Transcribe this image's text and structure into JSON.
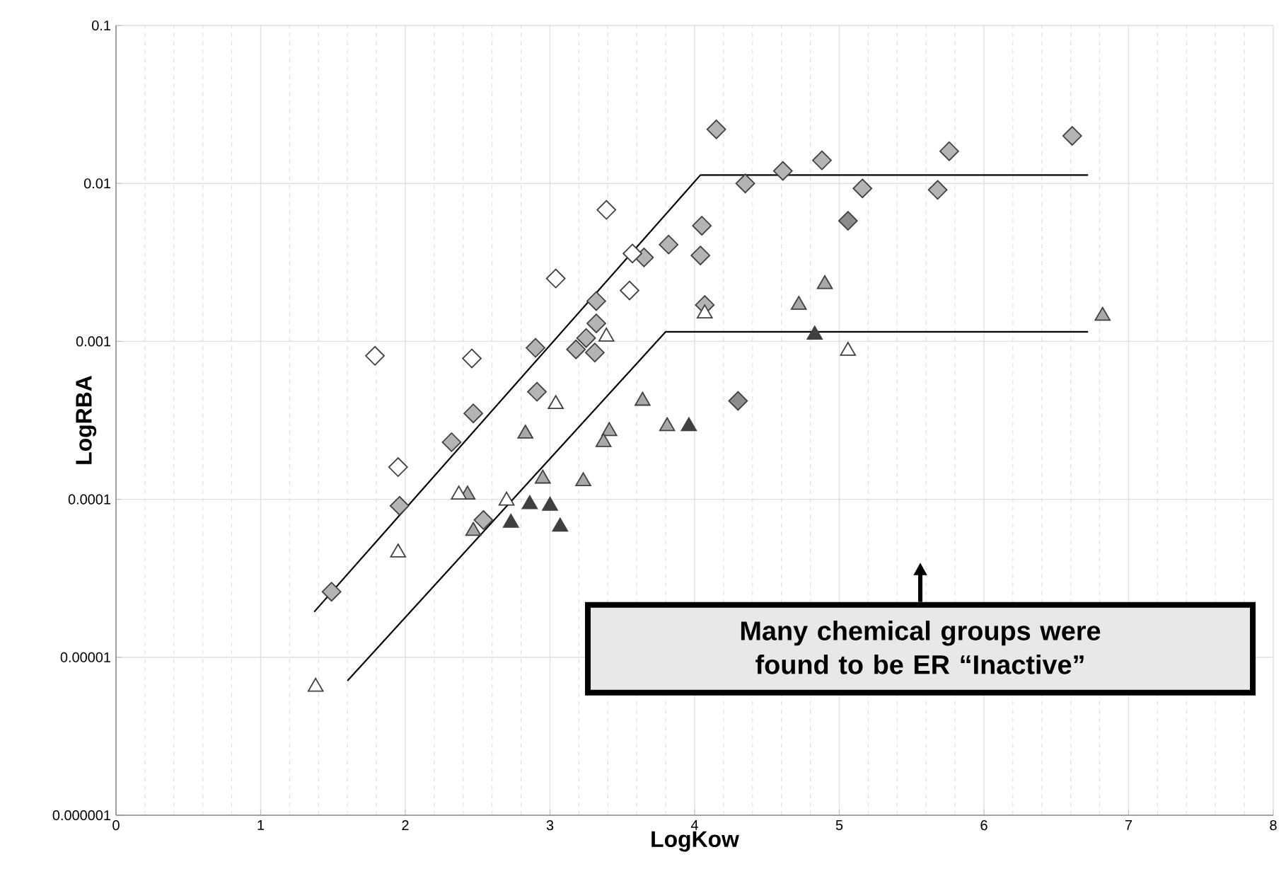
{
  "chart_data": {
    "type": "scatter",
    "xlabel": "LogKow",
    "ylabel": "LogRBA",
    "log": "y",
    "grid": true,
    "xlim": [
      0,
      8
    ],
    "xticks": [
      0,
      1,
      2,
      3,
      4,
      5,
      6,
      7,
      8
    ],
    "ylim": [
      1e-06,
      0.1
    ],
    "yticks": [
      {
        "value": 1e-06,
        "label": "0.000001"
      },
      {
        "value": 1e-05,
        "label": "0.00001"
      },
      {
        "value": 0.0001,
        "label": "0.0001"
      },
      {
        "value": 0.001,
        "label": "0.001"
      },
      {
        "value": 0.01,
        "label": "0.01"
      },
      {
        "value": 0.1,
        "label": "0.1"
      }
    ],
    "annotations": [
      "Many chemical groups were found to be ER “Inactive”"
    ],
    "series": [
      {
        "color": "#b4b4b4",
        "marker": "diamond",
        "x": [
          1.49,
          1.96,
          2.32,
          2.47,
          2.54,
          2.9,
          2.91,
          3.18,
          3.31,
          3.25,
          3.32,
          3.32,
          3.65,
          3.82,
          4.04,
          4.05,
          4.07,
          4.15,
          4.35,
          4.61,
          4.88,
          5.16,
          5.68,
          5.76,
          6.61
        ],
        "values": [
          2.6e-05,
          9.1e-05,
          0.00023,
          0.00035,
          7.4e-05,
          0.00091,
          0.00048,
          0.00089,
          0.00085,
          0.00105,
          0.0013,
          0.0018,
          0.0034,
          0.0041,
          0.0035,
          0.0054,
          0.0017,
          0.022,
          0.01,
          0.012,
          0.014,
          0.0093,
          0.0091,
          0.016,
          0.02
        ]
      },
      {
        "color": "#8c8c8c",
        "marker": "diamond",
        "x": [
          5.06,
          4.3
        ],
        "values": [
          0.0058,
          0.00042
        ]
      },
      {
        "color": "#ffffff",
        "marker": "diamond",
        "x": [
          1.79,
          1.95,
          2.46,
          3.04,
          3.39,
          3.57,
          3.55
        ],
        "values": [
          0.00081,
          0.00016,
          0.00078,
          0.0025,
          0.0068,
          0.0036,
          0.0021
        ]
      },
      {
        "color": "#a8a8a8",
        "marker": "triangle",
        "x": [
          2.43,
          2.47,
          2.95,
          3.23,
          2.83,
          3.41,
          3.37,
          3.64,
          3.81,
          4.72,
          4.9,
          6.82
        ],
        "values": [
          0.000107,
          6.3e-05,
          0.000135,
          0.00013,
          0.00026,
          0.00027,
          0.00023,
          0.00042,
          0.00029,
          0.0017,
          0.0023,
          0.00145
        ]
      },
      {
        "color": "#ffffff",
        "marker": "triangle",
        "x": [
          1.38,
          1.95,
          2.37,
          2.7,
          3.04,
          3.39,
          4.07,
          5.06
        ],
        "values": [
          6.5e-06,
          4.6e-05,
          0.000107,
          9.8e-05,
          0.0004,
          0.00107,
          0.0015,
          0.00087
        ]
      },
      {
        "color": "#404040",
        "marker": "triangle",
        "x": [
          2.73,
          2.86,
          3.0,
          3.07,
          3.96,
          4.83
        ],
        "values": [
          7.1e-05,
          9.3e-05,
          9.1e-05,
          6.7e-05,
          0.00029,
          0.0011
        ]
      },
      {
        "type": "line",
        "color": "#000000",
        "marker": "none",
        "line_style": "solid",
        "x": [
          1.37,
          4.04,
          6.72
        ],
        "values": [
          1.94e-05,
          0.0113,
          0.0113
        ]
      },
      {
        "type": "line",
        "color": "#000000",
        "marker": "none",
        "line_style": "solid",
        "x": [
          1.6,
          3.8,
          6.72
        ],
        "values": [
          7.1e-06,
          0.00115,
          0.00115
        ]
      }
    ]
  }
}
